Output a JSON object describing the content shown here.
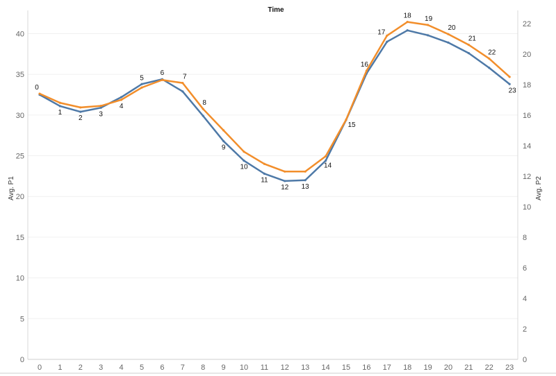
{
  "chart_data": {
    "type": "line",
    "title": "Time",
    "x": [
      0,
      1,
      2,
      3,
      4,
      5,
      6,
      7,
      8,
      9,
      10,
      11,
      12,
      13,
      14,
      15,
      16,
      17,
      18,
      19,
      20,
      21,
      22,
      23
    ],
    "x_tick_labels": [
      "0",
      "1",
      "2",
      "3",
      "4",
      "5",
      "6",
      "7",
      "8",
      "9",
      "10",
      "11",
      "12",
      "13",
      "14",
      "15",
      "16",
      "17",
      "18",
      "19",
      "20",
      "21",
      "22",
      "23"
    ],
    "ylabel": "Avg. P1",
    "y2label": "Avg. P2",
    "ylim": [
      0,
      42
    ],
    "y2lim": [
      0,
      22.4
    ],
    "yticks": [
      0,
      5,
      10,
      15,
      20,
      25,
      30,
      35,
      40
    ],
    "y2ticks": [
      0,
      2,
      4,
      6,
      8,
      10,
      12,
      14,
      16,
      18,
      20,
      22
    ],
    "grid": true,
    "series": [
      {
        "axis": "left",
        "color": "#4e79a7",
        "values": [
          32.5,
          31.1,
          30.4,
          30.9,
          32.2,
          33.8,
          34.4,
          32.9,
          29.9,
          26.8,
          24.4,
          22.8,
          21.9,
          22.0,
          24.4,
          29.4,
          35.1,
          39.0,
          40.4,
          39.8,
          38.9,
          37.6,
          35.8,
          33.8
        ]
      },
      {
        "axis": "right",
        "color": "#f28e2b",
        "values": [
          17.4,
          16.8,
          16.5,
          16.6,
          17.0,
          17.8,
          18.3,
          18.1,
          16.4,
          15.0,
          13.6,
          12.8,
          12.3,
          12.3,
          13.3,
          15.7,
          18.9,
          21.2,
          22.1,
          21.9,
          21.3,
          20.6,
          19.7,
          18.5
        ]
      }
    ],
    "data_labels": [
      "0",
      "1",
      "2",
      "3",
      "4",
      "5",
      "6",
      "7",
      "8",
      "9",
      "10",
      "11",
      "12",
      "13",
      "14",
      "15",
      "16",
      "17",
      "18",
      "19",
      "20",
      "21",
      "22",
      "23"
    ]
  }
}
